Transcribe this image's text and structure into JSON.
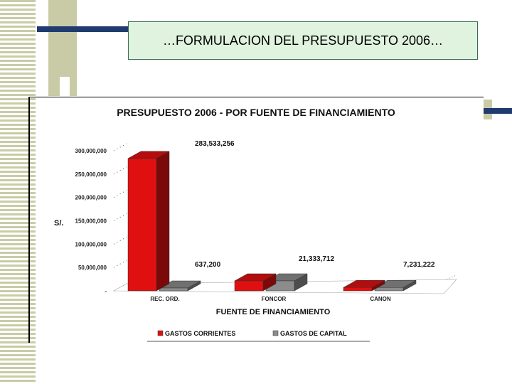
{
  "slide": {
    "title": "…FORMULACION DEL PRESUPUESTO 2006…"
  },
  "colors": {
    "corrientes": "#e01010",
    "capital": "#8c8c8c",
    "accent_navy": "#1f3b6f",
    "accent_olive": "#c9cba6",
    "title_bg": "#dff3df"
  },
  "chart_data": {
    "type": "bar",
    "title": "PRESUPUESTO 2006 - POR FUENTE DE FINANCIAMIENTO",
    "xlabel": "FUENTE DE FINANCIAMIENTO",
    "ylabel": "S/.",
    "categories": [
      "REC. ORD.",
      "FONCOR",
      "CANON"
    ],
    "series": [
      {
        "name": "GASTOS CORRIENTES",
        "values": [
          283533256,
          21333712,
          7231222
        ]
      },
      {
        "name": "GASTOS DE CAPITAL",
        "values": [
          637200,
          21333712,
          7231222
        ]
      }
    ],
    "data_labels": [
      "283,533,256",
      "637,200",
      "21,333,712",
      "7,231,222"
    ],
    "y_ticks": [
      {
        "value": 0,
        "label": "-"
      },
      {
        "value": 50000000,
        "label": "50,000,000"
      },
      {
        "value": 100000000,
        "label": "100,000,000"
      },
      {
        "value": 150000000,
        "label": "150,000,000"
      },
      {
        "value": 200000000,
        "label": "200,000,000"
      },
      {
        "value": 250000000,
        "label": "250,000,000"
      },
      {
        "value": 300000000,
        "label": "300,000,000"
      }
    ],
    "ylim": [
      0,
      300000000
    ],
    "legend_position": "bottom",
    "grid": true,
    "projection": "3d"
  }
}
